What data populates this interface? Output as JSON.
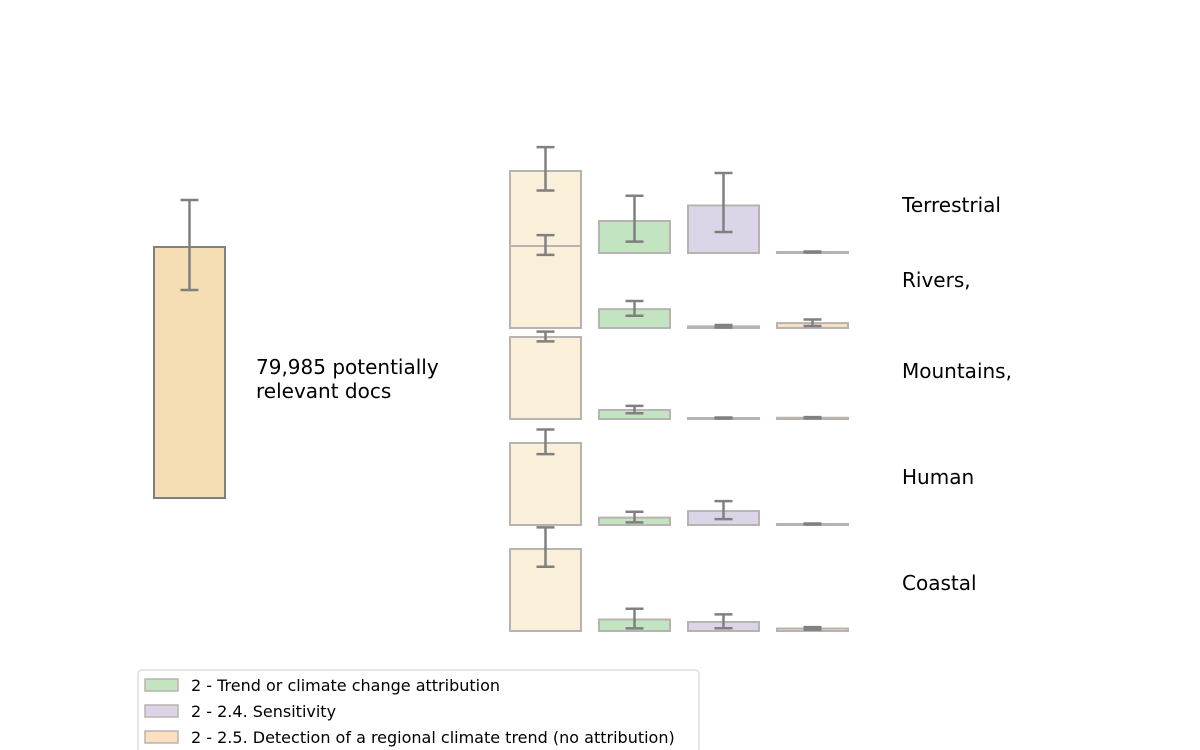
{
  "colors": {
    "total": "#f5deb3",
    "total_edge": "#808080",
    "base": "#faefd9",
    "trend": "#c2e4c0",
    "sensitivity": "#dcd5e8",
    "detection": "#fcdfc0",
    "errbar": "#808080",
    "small_edge": "#b8b3b0"
  },
  "chart_data": [
    {
      "type": "bar",
      "title": "",
      "values": [
        79985
      ],
      "error": [
        [
          18000,
          36000
        ]
      ],
      "annotation": "79,985 potentially\nrelevant docs"
    },
    {
      "type": "bar",
      "series": [
        {
          "name": "",
          "color_key": "base",
          "values": [
            1000,
            1000,
            1000,
            1000,
            1000
          ]
        },
        {
          "name": "2 - Trend or climate change attribution",
          "color_key": "trend",
          "values": [
            390,
            230,
            110,
            90,
            140
          ]
        },
        {
          "name": "2 - 2.4. Sensitivity",
          "color_key": "sensitivity",
          "values": [
            580,
            20,
            5,
            170,
            110
          ]
        },
        {
          "name": "2 - 2.5. Detection of a regional climate trend (no attribution)",
          "color_key": "detection",
          "values": [
            5,
            60,
            15,
            5,
            30
          ]
        }
      ],
      "rows": [
        "Terrestrial",
        "Rivers,",
        "Mountains,",
        "Human",
        "Coastal"
      ],
      "errors": [
        [
          [
            270,
            530
          ],
          [
            210,
            560
          ],
          [
            230,
            720
          ],
          [
            5,
            5
          ]
        ],
        [
          [
            100,
            240
          ],
          [
            80,
            180
          ],
          [
            10,
            30
          ],
          [
            30,
            80
          ]
        ],
        [
          [
            40,
            120
          ],
          [
            30,
            90
          ],
          [
            5,
            5
          ],
          [
            5,
            15
          ]
        ],
        [
          [
            160,
            300
          ],
          [
            50,
            130
          ],
          [
            120,
            220
          ],
          [
            5,
            5
          ]
        ],
        [
          [
            240,
            480
          ],
          [
            70,
            240
          ],
          [
            60,
            170
          ],
          [
            15,
            30
          ]
        ]
      ]
    }
  ],
  "legend": {
    "items": [
      {
        "label": "2 - Trend or climate change attribution",
        "color_key": "trend"
      },
      {
        "label": "2 - 2.4. Sensitivity",
        "color_key": "sensitivity"
      },
      {
        "label": "2 - 2.5. Detection of a regional climate trend (no attribution)",
        "color_key": "detection"
      }
    ]
  }
}
